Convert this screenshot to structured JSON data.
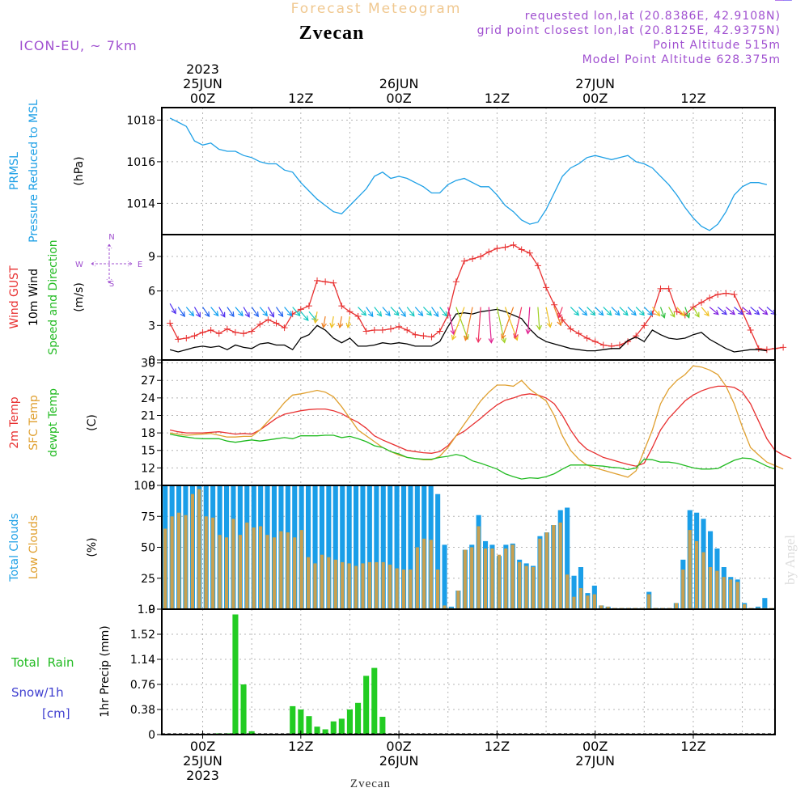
{
  "header": {
    "forecast_title": "Forecast Meteogram",
    "location": "Zvecan",
    "model": "ICON-EU, ~ 7km",
    "requested": "requested lon,lat (20.8386E, 42.9108N)",
    "grid_point": "grid point closest lon,lat (20.8125E, 42.9375N)",
    "point_altitude": "Point Altitude 515m",
    "model_altitude": "Model Point Altitude 628.375m",
    "watermark": "by Angel",
    "footer_location": "Zvecan"
  },
  "time_axis": {
    "top_labels": [
      {
        "hour": 0,
        "lines": [
          "2023",
          "25JUN",
          "00Z"
        ]
      },
      {
        "hour": 12,
        "lines": [
          "12Z"
        ]
      },
      {
        "hour": 24,
        "lines": [
          "26JUN",
          "00Z"
        ]
      },
      {
        "hour": 36,
        "lines": [
          "12Z"
        ]
      },
      {
        "hour": 48,
        "lines": [
          "27JUN",
          "00Z"
        ]
      },
      {
        "hour": 60,
        "lines": [
          "12Z"
        ]
      }
    ],
    "bottom_labels": [
      {
        "hour": 0,
        "lines": [
          "00Z",
          "25JUN",
          "2023"
        ]
      },
      {
        "hour": 12,
        "lines": [
          "12Z"
        ]
      },
      {
        "hour": 24,
        "lines": [
          "00Z",
          "26JUN"
        ]
      },
      {
        "hour": 36,
        "lines": [
          "12Z"
        ]
      },
      {
        "hour": 48,
        "lines": [
          "00Z",
          "27JUN"
        ]
      },
      {
        "hour": 60,
        "lines": [
          "12Z"
        ]
      }
    ]
  },
  "panels": {
    "pressure": {
      "labels": [
        "PRMSL",
        "Pressure Reduced to MSL"
      ],
      "unit": "(hPa)",
      "label_colors": [
        "#1ea0e6",
        "#1ea0e6"
      ]
    },
    "wind": {
      "labels": [
        "Wind GUST",
        "10m Wind",
        "Speed and Direction"
      ],
      "unit": "(m/s)",
      "label_colors": [
        "#e83030",
        "#000000",
        "#22bb22"
      ],
      "compass": {
        "n": "N",
        "s": "S",
        "w": "W",
        "e": "E"
      }
    },
    "temp": {
      "labels": [
        "2m Temp",
        "SFC Temp",
        "dewpt Temp"
      ],
      "unit": "(C)",
      "label_colors": [
        "#e83030",
        "#e0a030",
        "#22bb22"
      ]
    },
    "clouds": {
      "labels": [
        "Total Clouds",
        "Low Clouds"
      ],
      "unit": "(%)",
      "label_colors": [
        "#1ea0e6",
        "#e0a030"
      ]
    },
    "precip": {
      "labels": [
        "Total  Rain",
        "Snow/1h",
        "[cm]"
      ],
      "unit": "1hr Precip (mm)",
      "label_colors": [
        "#22bb22",
        "#4040d0",
        "#4040d0"
      ]
    }
  },
  "colors": {
    "pressure": "#1ea0e6",
    "gust": "#e83030",
    "wind": "#000000",
    "temp2m": "#e83030",
    "sfc": "#e0a030",
    "dew": "#22bb22",
    "total_clouds": "#1a9ee8",
    "low_clouds": "#c8a050",
    "rain": "#22cc22",
    "header_purple": "#a050d0",
    "title_orange": "#f0c890"
  },
  "chart_data": [
    {
      "type": "line",
      "title": "PRMSL Pressure Reduced to MSL",
      "ylabel": "(hPa)",
      "ylim": [
        1012.5,
        1018.6
      ],
      "yticks": [
        1014,
        1016,
        1018
      ],
      "x_hours_start": -4,
      "x_hours_step": 1,
      "series": [
        {
          "name": "PRMSL",
          "values": [
            1018.1,
            1017.9,
            1017.7,
            1017.0,
            1016.8,
            1016.9,
            1016.6,
            1016.5,
            1016.5,
            1016.3,
            1016.2,
            1016.0,
            1015.9,
            1015.9,
            1015.6,
            1015.5,
            1015.0,
            1014.6,
            1014.2,
            1013.9,
            1013.6,
            1013.5,
            1013.9,
            1014.3,
            1014.7,
            1015.3,
            1015.5,
            1015.2,
            1015.3,
            1015.2,
            1015.0,
            1014.8,
            1014.5,
            1014.5,
            1014.9,
            1015.1,
            1015.2,
            1015.0,
            1014.8,
            1014.8,
            1014.4,
            1013.9,
            1013.6,
            1013.2,
            1013.0,
            1013.1,
            1013.7,
            1014.5,
            1015.3,
            1015.7,
            1015.9,
            1016.2,
            1016.3,
            1016.2,
            1016.1,
            1016.2,
            1016.3,
            1016.0,
            1015.9,
            1015.7,
            1015.3,
            1014.9,
            1014.4,
            1013.8,
            1013.3,
            1012.9,
            1012.7,
            1013.0,
            1013.6,
            1014.4,
            1014.8,
            1015.0,
            1015.0,
            1014.9
          ]
        }
      ]
    },
    {
      "type": "line",
      "title": "Wind GUST / 10m Wind Speed and Direction",
      "ylabel": "(m/s)",
      "ylim": [
        0,
        10.9
      ],
      "yticks": [
        0,
        3,
        6,
        9
      ],
      "x_hours_start": -4,
      "x_hours_step": 1,
      "series": [
        {
          "name": "Wind GUST",
          "values": [
            3.2,
            1.8,
            1.9,
            2.1,
            2.4,
            2.6,
            2.3,
            2.7,
            2.4,
            2.3,
            2.5,
            3.1,
            3.5,
            3.2,
            2.8,
            4.0,
            4.4,
            4.7,
            6.9,
            6.8,
            6.7,
            4.7,
            4.2,
            3.8,
            2.5,
            2.6,
            2.6,
            2.7,
            2.9,
            2.6,
            2.2,
            2.1,
            2.0,
            2.5,
            3.9,
            6.8,
            8.6,
            8.8,
            9.0,
            9.4,
            9.7,
            9.8,
            10.0,
            9.6,
            9.3,
            8.2,
            6.3,
            4.8,
            3.5,
            2.7,
            2.3,
            1.9,
            1.6,
            1.3,
            1.2,
            1.3,
            1.6,
            2.1,
            3.0,
            4.0,
            6.2,
            6.2,
            4.2,
            3.9,
            4.6,
            5.0,
            5.4,
            5.7,
            5.8,
            5.7,
            4.2,
            2.6,
            1.0,
            0.9,
            1.0,
            1.1
          ]
        },
        {
          "name": "10m Wind",
          "values": [
            0.9,
            0.7,
            0.9,
            1.1,
            1.2,
            1.1,
            1.2,
            0.9,
            1.3,
            1.1,
            1.0,
            1.4,
            1.5,
            1.3,
            1.3,
            0.9,
            1.9,
            2.2,
            3.0,
            2.6,
            1.9,
            1.5,
            1.9,
            1.2,
            1.2,
            1.3,
            1.5,
            1.4,
            1.5,
            1.4,
            1.2,
            1.2,
            1.2,
            1.6,
            2.9,
            4.0,
            4.1,
            4.0,
            4.2,
            4.3,
            4.4,
            4.2,
            3.9,
            3.6,
            2.7,
            2.0,
            1.6,
            1.4,
            1.2,
            1.0,
            0.9,
            0.8,
            0.8,
            0.9,
            1.0,
            1.0,
            1.7,
            2.0,
            1.6,
            2.6,
            2.2,
            1.9,
            1.8,
            1.9,
            2.2,
            2.4,
            1.8,
            1.4,
            1.0,
            0.7,
            0.8,
            0.9,
            0.9,
            0.8
          ]
        }
      ],
      "barb_speeds_ms": [
        4.9,
        4.6,
        4.6,
        4.6,
        4.6,
        4.6,
        4.6,
        4.6,
        4.6,
        4.6,
        4.6,
        4.6,
        4.6,
        4.6,
        4.6,
        4.6,
        4.2,
        4.2,
        4.2,
        3.8,
        3.8,
        3.8,
        3.8,
        4.6,
        4.6,
        4.6,
        4.6,
        4.6,
        4.6,
        4.6,
        4.6,
        4.6,
        4.6,
        4.6,
        4.6,
        4.6,
        4.6,
        4.6,
        4.6,
        4.6,
        4.6,
        4.6,
        4.6,
        4.6,
        4.6,
        4.6,
        4.6,
        4.6,
        4.6,
        4.6,
        4.6,
        4.6,
        4.6,
        4.6,
        4.6,
        4.6,
        4.6,
        4.6,
        4.6,
        4.6,
        4.6,
        4.6,
        4.6,
        4.6,
        4.6,
        4.6,
        4.6,
        4.6,
        4.6,
        4.6,
        4.6,
        4.6,
        4.6,
        4.6
      ]
    },
    {
      "type": "line",
      "title": "2m Temp / SFC Temp / dewpt Temp",
      "ylabel": "(C)",
      "ylim": [
        9,
        30.5
      ],
      "yticks": [
        9,
        12,
        15,
        18,
        21,
        24,
        27,
        30
      ],
      "x_hours_start": -4,
      "x_hours_step": 1,
      "series": [
        {
          "name": "2m Temp",
          "values": [
            18.5,
            18.2,
            18.0,
            18.0,
            18.0,
            18.1,
            18.2,
            18.0,
            17.8,
            17.9,
            17.8,
            18.5,
            19.5,
            20.5,
            21.2,
            21.5,
            21.8,
            22.0,
            22.1,
            22.1,
            21.8,
            21.3,
            20.5,
            19.8,
            18.8,
            17.5,
            16.8,
            16.2,
            15.6,
            15.0,
            14.8,
            14.6,
            14.5,
            14.8,
            15.8,
            17.5,
            18.3,
            19.4,
            20.5,
            21.7,
            22.8,
            23.6,
            24.0,
            24.5,
            24.7,
            24.5,
            24.0,
            23.0,
            21.0,
            18.5,
            16.5,
            15.2,
            14.5,
            13.8,
            13.4,
            13.0,
            12.6,
            12.3,
            12.8,
            15.5,
            18.5,
            20.5,
            22.0,
            23.5,
            24.5,
            25.2,
            25.7,
            26.0,
            26.0,
            25.8,
            25.0,
            23.0,
            20.0,
            17.0,
            15.0,
            14.2,
            13.6
          ]
        },
        {
          "name": "SFC Temp",
          "values": [
            18.0,
            17.8,
            17.6,
            17.7,
            17.8,
            17.9,
            17.6,
            17.3,
            17.3,
            17.4,
            17.4,
            18.5,
            20.0,
            21.5,
            23.2,
            24.5,
            24.7,
            25.0,
            25.3,
            25.0,
            24.2,
            22.5,
            20.5,
            18.5,
            17.5,
            16.5,
            15.5,
            14.8,
            14.2,
            13.8,
            13.6,
            13.4,
            13.4,
            14.0,
            15.5,
            17.5,
            19.5,
            21.5,
            23.5,
            25.0,
            26.2,
            26.2,
            26.0,
            27.0,
            25.5,
            24.5,
            23.5,
            21.0,
            17.5,
            15.0,
            13.5,
            12.5,
            12.0,
            11.6,
            11.2,
            10.8,
            10.4,
            11.5,
            15.0,
            18.5,
            23.0,
            25.5,
            27.0,
            28.0,
            29.5,
            29.3,
            28.8,
            28.0,
            26.0,
            23.0,
            19.0,
            15.5,
            14.2,
            13.0,
            12.4,
            11.8
          ]
        },
        {
          "name": "dewpt Temp",
          "values": [
            17.8,
            17.5,
            17.3,
            17.1,
            17.0,
            17.0,
            17.0,
            16.6,
            16.4,
            16.6,
            16.8,
            16.6,
            16.8,
            17.0,
            17.2,
            17.0,
            17.5,
            17.5,
            17.5,
            17.6,
            17.6,
            17.2,
            17.4,
            17.0,
            16.5,
            15.8,
            15.5,
            14.8,
            14.4,
            13.8,
            13.6,
            13.5,
            13.5,
            13.8,
            14.0,
            14.3,
            14.0,
            13.2,
            12.8,
            12.3,
            11.8,
            11.0,
            10.5,
            10.1,
            10.3,
            10.2,
            10.5,
            11.0,
            11.8,
            12.5,
            12.5,
            12.5,
            12.4,
            12.3,
            12.1,
            12.0,
            11.7,
            12.0,
            13.5,
            13.4,
            13.0,
            13.0,
            12.8,
            12.4,
            12.0,
            11.8,
            11.8,
            11.9,
            12.6,
            13.3,
            13.7,
            13.6,
            13.0,
            12.3,
            11.8
          ]
        }
      ]
    },
    {
      "type": "bar",
      "title": "Total Clouds / Low Clouds",
      "ylabel": "(%)",
      "ylim": [
        0,
        100
      ],
      "yticks": [
        0,
        25,
        50,
        75,
        100
      ],
      "x_hours_start": -4,
      "x_hours_step": 1,
      "series": [
        {
          "name": "Total Clouds",
          "values": [
            100,
            100,
            100,
            100,
            100,
            100,
            100,
            100,
            100,
            100,
            100,
            100,
            100,
            100,
            100,
            100,
            100,
            100,
            100,
            100,
            100,
            100,
            100,
            100,
            100,
            100,
            100,
            100,
            100,
            100,
            100,
            100,
            100,
            100,
            100,
            100,
            100,
            100,
            100,
            100,
            93,
            52,
            2,
            15,
            48,
            52,
            76,
            55,
            52,
            43,
            52,
            53,
            40,
            37,
            35,
            59,
            62,
            68,
            80,
            82,
            27,
            34,
            13,
            19,
            3,
            2,
            1,
            1,
            1,
            1,
            1,
            14,
            1,
            1,
            1,
            5,
            40,
            80,
            78,
            73,
            63,
            49,
            34,
            26,
            24,
            5,
            1,
            2,
            9,
            1
          ]
        },
        {
          "name": "Low Clouds",
          "values": [
            65,
            75,
            78,
            76,
            93,
            97,
            75,
            74,
            60,
            58,
            73,
            60,
            70,
            66,
            67,
            60,
            58,
            63,
            62,
            58,
            64,
            42,
            37,
            44,
            42,
            40,
            38,
            37,
            35,
            37,
            38,
            38,
            38,
            36,
            33,
            32,
            32,
            50,
            57,
            56,
            32,
            3,
            1,
            15,
            48,
            50,
            67,
            49,
            49,
            44,
            49,
            52,
            38,
            35,
            34,
            57,
            62,
            68,
            70,
            28,
            10,
            17,
            11,
            12,
            3,
            2,
            1,
            1,
            1,
            1,
            1,
            12,
            1,
            1,
            1,
            5,
            32,
            64,
            55,
            46,
            34,
            31,
            26,
            24,
            22,
            4,
            1,
            1,
            1,
            1
          ]
        }
      ]
    },
    {
      "type": "bar",
      "title": "1hr Precip",
      "ylabel": "1hr Precip (mm)",
      "ylim": [
        0,
        1.9
      ],
      "yticks": [
        0,
        0.38,
        0.76,
        1.14,
        1.52,
        1.9
      ],
      "ytick_labels": [
        "0",
        "0.38",
        "0.76",
        "1.14",
        "1.52",
        "1.9"
      ],
      "x_hours_start": -4,
      "x_hours_step": 1,
      "series": [
        {
          "name": "Total Rain",
          "values": [
            0,
            0,
            0,
            0,
            0,
            0,
            0.02,
            0.02,
            1.82,
            0.76,
            0.05,
            0,
            0,
            0,
            0,
            0.43,
            0.38,
            0.28,
            0.12,
            0.08,
            0.2,
            0.24,
            0.38,
            0.48,
            0.89,
            1.01,
            0.27,
            0,
            0,
            0,
            0,
            0,
            0,
            0,
            0,
            0,
            0,
            0,
            0,
            0,
            0,
            0,
            0,
            0,
            0,
            0,
            0,
            0,
            0,
            0,
            0,
            0,
            0,
            0,
            0,
            0,
            0,
            0,
            0,
            0,
            0,
            0,
            0,
            0,
            0,
            0,
            0,
            0,
            0,
            0,
            0,
            0,
            0,
            0,
            0,
            0
          ]
        }
      ]
    }
  ]
}
